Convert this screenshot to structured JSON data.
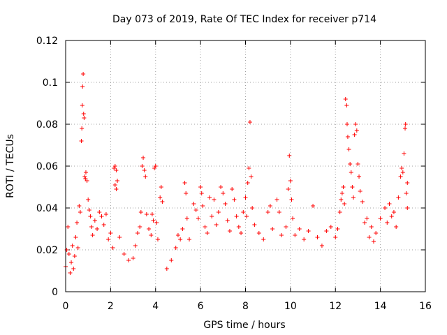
{
  "chart_data": {
    "type": "scatter",
    "title": "Day 073 of 2019, Rate Of TEC Index for receiver p714",
    "xlabel": "GPS time / hours",
    "ylabel": "ROTI / TECUs",
    "xlim": [
      0,
      16
    ],
    "ylim": [
      0,
      0.12
    ],
    "x_ticks": [
      0,
      2,
      4,
      6,
      8,
      10,
      12,
      14,
      16
    ],
    "x_tick_labels": [
      "0",
      "2",
      "4",
      "6",
      "8",
      "10",
      "12",
      "14",
      "16"
    ],
    "y_ticks": [
      0,
      0.02,
      0.04,
      0.06,
      0.08,
      0.1,
      0.12
    ],
    "y_tick_labels": [
      "0",
      "0.02",
      "0.04",
      "0.06",
      "0.08",
      "0.1",
      "0.12"
    ],
    "grid": true,
    "marker": "+",
    "color": "#ff0000",
    "series": [
      {
        "name": "ROTI",
        "points": [
          [
            0.0,
            0.012
          ],
          [
            0.05,
            0.02
          ],
          [
            0.1,
            0.031
          ],
          [
            0.15,
            0.018
          ],
          [
            0.2,
            0.009
          ],
          [
            0.25,
            0.014
          ],
          [
            0.3,
            0.022
          ],
          [
            0.35,
            0.011
          ],
          [
            0.4,
            0.017
          ],
          [
            0.45,
            0.026
          ],
          [
            0.5,
            0.033
          ],
          [
            0.55,
            0.021
          ],
          [
            0.6,
            0.041
          ],
          [
            0.65,
            0.038
          ],
          [
            0.7,
            0.072
          ],
          [
            0.72,
            0.078
          ],
          [
            0.74,
            0.089
          ],
          [
            0.75,
            0.098
          ],
          [
            0.78,
            0.104
          ],
          [
            0.8,
            0.085
          ],
          [
            0.82,
            0.083
          ],
          [
            0.85,
            0.055
          ],
          [
            0.88,
            0.054
          ],
          [
            0.9,
            0.057
          ],
          [
            0.95,
            0.053
          ],
          [
            1.0,
            0.044
          ],
          [
            1.05,
            0.039
          ],
          [
            1.1,
            0.036
          ],
          [
            1.15,
            0.031
          ],
          [
            1.2,
            0.027
          ],
          [
            1.3,
            0.034
          ],
          [
            1.4,
            0.03
          ],
          [
            1.5,
            0.038
          ],
          [
            1.6,
            0.036
          ],
          [
            1.7,
            0.032
          ],
          [
            1.8,
            0.037
          ],
          [
            1.9,
            0.025
          ],
          [
            2.0,
            0.028
          ],
          [
            2.1,
            0.021
          ],
          [
            2.15,
            0.059
          ],
          [
            2.2,
            0.06
          ],
          [
            2.25,
            0.058
          ],
          [
            2.3,
            0.053
          ],
          [
            2.2,
            0.051
          ],
          [
            2.25,
            0.049
          ],
          [
            2.4,
            0.026
          ],
          [
            2.6,
            0.018
          ],
          [
            2.8,
            0.015
          ],
          [
            3.0,
            0.016
          ],
          [
            3.1,
            0.022
          ],
          [
            3.2,
            0.028
          ],
          [
            3.3,
            0.031
          ],
          [
            3.35,
            0.038
          ],
          [
            3.4,
            0.06
          ],
          [
            3.45,
            0.064
          ],
          [
            3.5,
            0.058
          ],
          [
            3.55,
            0.055
          ],
          [
            3.6,
            0.037
          ],
          [
            3.7,
            0.03
          ],
          [
            3.8,
            0.027
          ],
          [
            3.85,
            0.037
          ],
          [
            3.9,
            0.034
          ],
          [
            3.95,
            0.059
          ],
          [
            4.0,
            0.06
          ],
          [
            4.05,
            0.033
          ],
          [
            4.1,
            0.025
          ],
          [
            4.2,
            0.045
          ],
          [
            4.25,
            0.05
          ],
          [
            4.3,
            0.043
          ],
          [
            4.5,
            0.011
          ],
          [
            4.7,
            0.015
          ],
          [
            4.9,
            0.021
          ],
          [
            5.0,
            0.027
          ],
          [
            5.1,
            0.025
          ],
          [
            5.2,
            0.03
          ],
          [
            5.3,
            0.052
          ],
          [
            5.35,
            0.047
          ],
          [
            5.4,
            0.035
          ],
          [
            5.5,
            0.025
          ],
          [
            5.7,
            0.042
          ],
          [
            5.8,
            0.039
          ],
          [
            5.9,
            0.035
          ],
          [
            6.0,
            0.05
          ],
          [
            6.05,
            0.047
          ],
          [
            6.1,
            0.041
          ],
          [
            6.2,
            0.031
          ],
          [
            6.3,
            0.028
          ],
          [
            6.4,
            0.045
          ],
          [
            6.5,
            0.036
          ],
          [
            6.6,
            0.044
          ],
          [
            6.7,
            0.032
          ],
          [
            6.8,
            0.038
          ],
          [
            6.9,
            0.05
          ],
          [
            7.0,
            0.047
          ],
          [
            7.1,
            0.042
          ],
          [
            7.2,
            0.034
          ],
          [
            7.3,
            0.029
          ],
          [
            7.4,
            0.049
          ],
          [
            7.5,
            0.044
          ],
          [
            7.6,
            0.036
          ],
          [
            7.7,
            0.031
          ],
          [
            7.8,
            0.028
          ],
          [
            7.9,
            0.038
          ],
          [
            8.0,
            0.045
          ],
          [
            8.05,
            0.036
          ],
          [
            8.1,
            0.052
          ],
          [
            8.15,
            0.059
          ],
          [
            8.2,
            0.081
          ],
          [
            8.25,
            0.055
          ],
          [
            8.3,
            0.04
          ],
          [
            8.4,
            0.032
          ],
          [
            8.6,
            0.028
          ],
          [
            8.8,
            0.025
          ],
          [
            9.0,
            0.038
          ],
          [
            9.1,
            0.041
          ],
          [
            9.2,
            0.03
          ],
          [
            9.4,
            0.044
          ],
          [
            9.5,
            0.038
          ],
          [
            9.6,
            0.027
          ],
          [
            9.8,
            0.031
          ],
          [
            9.9,
            0.049
          ],
          [
            9.95,
            0.065
          ],
          [
            10.0,
            0.053
          ],
          [
            10.05,
            0.044
          ],
          [
            10.1,
            0.035
          ],
          [
            10.2,
            0.027
          ],
          [
            10.4,
            0.03
          ],
          [
            10.6,
            0.025
          ],
          [
            10.8,
            0.029
          ],
          [
            11.0,
            0.041
          ],
          [
            11.2,
            0.026
          ],
          [
            11.4,
            0.022
          ],
          [
            11.6,
            0.029
          ],
          [
            11.8,
            0.031
          ],
          [
            12.0,
            0.026
          ],
          [
            12.1,
            0.03
          ],
          [
            12.2,
            0.038
          ],
          [
            12.25,
            0.044
          ],
          [
            12.3,
            0.047
          ],
          [
            12.35,
            0.05
          ],
          [
            12.4,
            0.042
          ],
          [
            12.45,
            0.092
          ],
          [
            12.5,
            0.089
          ],
          [
            12.52,
            0.08
          ],
          [
            12.55,
            0.074
          ],
          [
            12.6,
            0.068
          ],
          [
            12.65,
            0.061
          ],
          [
            12.7,
            0.057
          ],
          [
            12.75,
            0.05
          ],
          [
            12.8,
            0.045
          ],
          [
            12.85,
            0.075
          ],
          [
            12.9,
            0.08
          ],
          [
            12.95,
            0.077
          ],
          [
            13.0,
            0.061
          ],
          [
            13.05,
            0.055
          ],
          [
            13.1,
            0.048
          ],
          [
            13.2,
            0.043
          ],
          [
            13.3,
            0.033
          ],
          [
            13.4,
            0.035
          ],
          [
            13.5,
            0.026
          ],
          [
            13.6,
            0.031
          ],
          [
            13.7,
            0.024
          ],
          [
            13.8,
            0.028
          ],
          [
            14.0,
            0.035
          ],
          [
            14.2,
            0.04
          ],
          [
            14.3,
            0.033
          ],
          [
            14.4,
            0.042
          ],
          [
            14.5,
            0.036
          ],
          [
            14.6,
            0.038
          ],
          [
            14.7,
            0.031
          ],
          [
            14.8,
            0.045
          ],
          [
            14.9,
            0.055
          ],
          [
            14.95,
            0.059
          ],
          [
            15.0,
            0.057
          ],
          [
            15.05,
            0.066
          ],
          [
            15.1,
            0.078
          ],
          [
            15.12,
            0.08
          ],
          [
            15.15,
            0.047
          ],
          [
            15.2,
            0.04
          ],
          [
            15.2,
            0.052
          ]
        ]
      }
    ]
  }
}
